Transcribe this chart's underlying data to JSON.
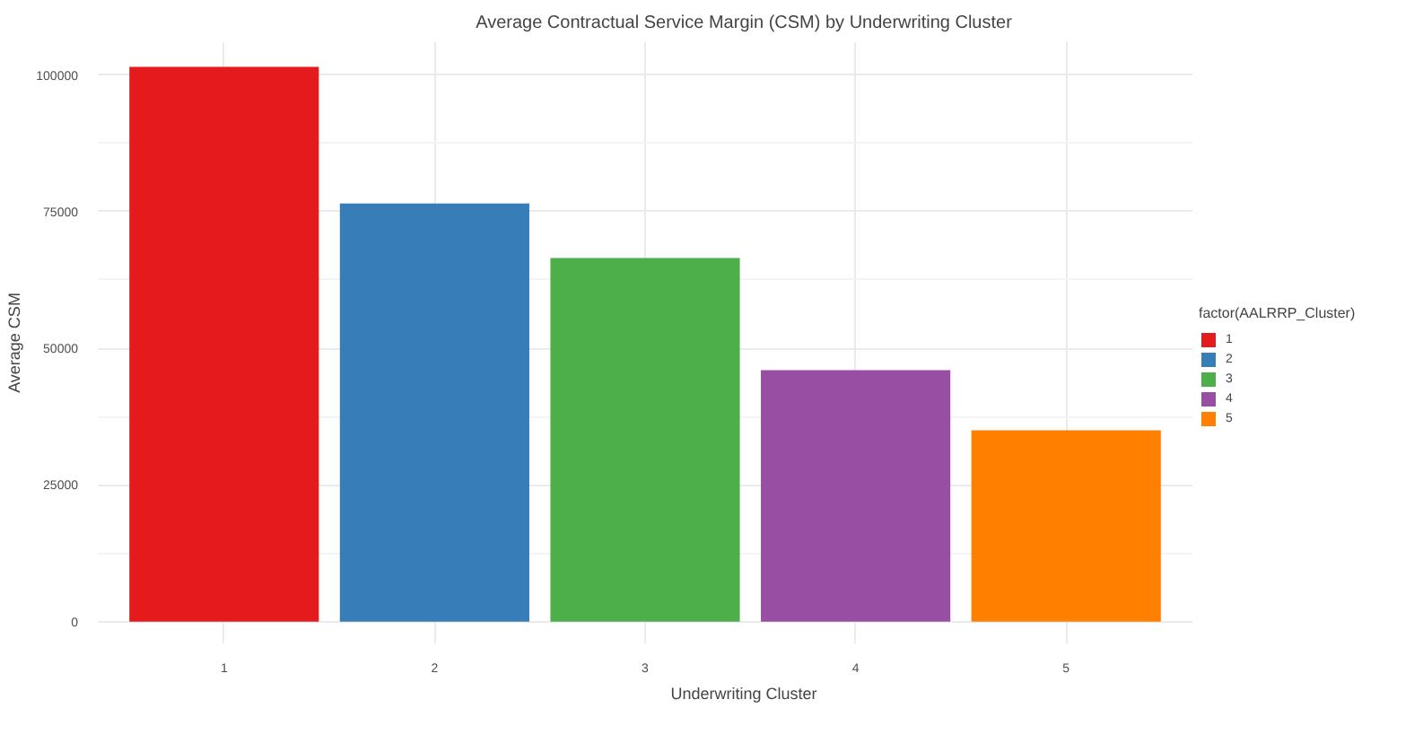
{
  "chart_data": {
    "type": "bar",
    "title": "Average Contractual Service Margin (CSM) by Underwriting Cluster",
    "xlabel": "Underwriting Cluster",
    "ylabel": "Average CSM",
    "legend_title": "factor(AALRRP_Cluster)",
    "categories": [
      "1",
      "2",
      "3",
      "4",
      "5"
    ],
    "series": [
      {
        "name": "1",
        "color": "#e41a1c",
        "values": [
          101500,
          null,
          null,
          null,
          null
        ]
      },
      {
        "name": "2",
        "color": "#377eb8",
        "values": [
          null,
          76500,
          null,
          null,
          null
        ]
      },
      {
        "name": "3",
        "color": "#4daf4a",
        "values": [
          null,
          null,
          66500,
          null,
          null
        ]
      },
      {
        "name": "4",
        "color": "#984ea3",
        "values": [
          null,
          null,
          null,
          46000,
          null
        ]
      },
      {
        "name": "5",
        "color": "#ff7f00",
        "values": [
          null,
          null,
          null,
          null,
          35000
        ]
      }
    ],
    "ylim": [
      -4000,
      106000
    ],
    "yticks": [
      0,
      25000,
      50000,
      75000,
      100000
    ],
    "grid": true,
    "legend": "right"
  }
}
